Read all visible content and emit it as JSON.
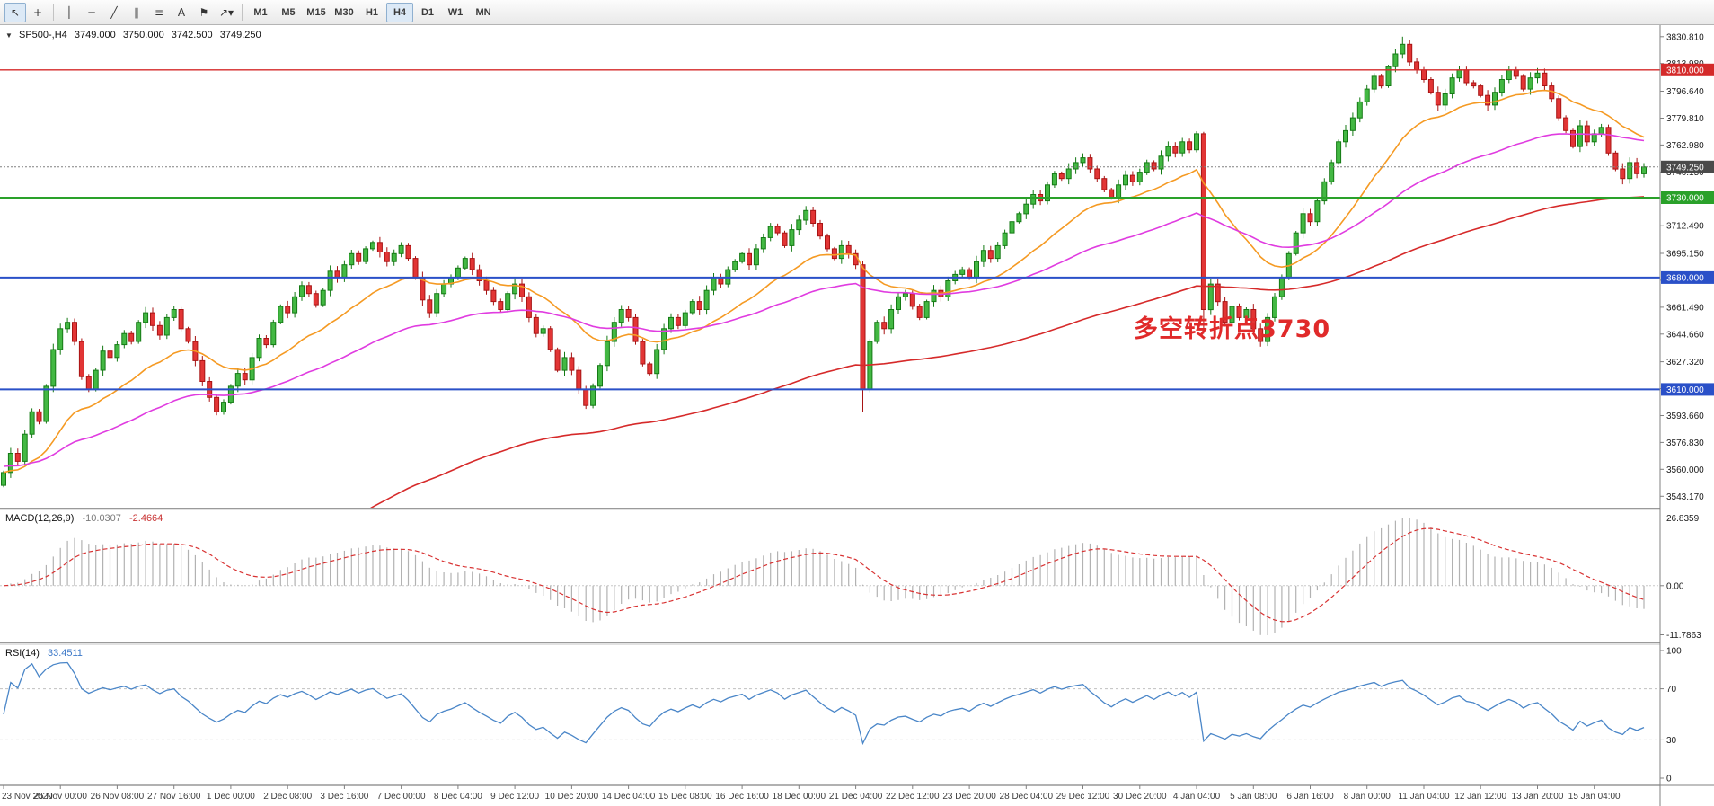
{
  "toolbar": {
    "tools": [
      {
        "name": "cursor-tool-button",
        "glyph": "↖",
        "active": true
      },
      {
        "name": "crosshair-tool-button",
        "glyph": "+",
        "active": false
      },
      {
        "type": "sep"
      },
      {
        "name": "vertical-line-tool-button",
        "glyph": "│",
        "active": false
      },
      {
        "name": "horizontal-line-tool-button",
        "glyph": "─",
        "active": false
      },
      {
        "name": "trendline-tool-button",
        "glyph": "╱",
        "active": false
      },
      {
        "name": "equidistant-channel-tool-button",
        "glyph": "∥",
        "active": false
      },
      {
        "name": "fibonacci-tool-button",
        "glyph": "≡",
        "active": false
      },
      {
        "name": "text-tool-button",
        "glyph": "A",
        "active": false
      },
      {
        "name": "label-tool-button",
        "glyph": "⚑",
        "active": false
      },
      {
        "name": "arrows-tool-button",
        "glyph": "↗▾",
        "active": false
      },
      {
        "type": "sep"
      }
    ],
    "timeframes": [
      "M1",
      "M5",
      "M15",
      "M30",
      "H1",
      "H4",
      "D1",
      "W1",
      "MN"
    ],
    "active_timeframe": "H4"
  },
  "symbol_header": {
    "symbol": "SP500-,H4",
    "open": "3749.000",
    "high": "3750.000",
    "low": "3742.500",
    "close": "3749.250"
  },
  "annotation": {
    "text": "多空转折点3730",
    "color": "#e02a2a"
  },
  "price_axis": {
    "ticks": [
      "3830.810",
      "3813.980",
      "3796.640",
      "3779.810",
      "3762.980",
      "3746.150",
      "3729.320",
      "3712.490",
      "3695.150",
      "3678.320",
      "3661.490",
      "3644.660",
      "3627.320",
      "3610.490",
      "3593.660",
      "3576.830",
      "3560.000",
      "3543.170"
    ]
  },
  "levels": [
    {
      "value": 3810.0,
      "label": "3810.000",
      "color": "#d42a2a",
      "badge": "#d42a2a",
      "width": 1.4
    },
    {
      "value": 3730.0,
      "label": "3730.000",
      "color": "#2aa12a",
      "badge": "#2aa12a",
      "width": 2
    },
    {
      "value": 3680.0,
      "label": "3680.000",
      "color": "#2a50c8",
      "badge": "#2a50c8",
      "width": 2
    },
    {
      "value": 3610.0,
      "label": "3610.000",
      "color": "#2a50c8",
      "badge": "#2a50c8",
      "width": 2
    }
  ],
  "current_price": {
    "value": 3749.25,
    "label": "3749.250",
    "badge": "#4a4a4a",
    "line_color": "#808080"
  },
  "macd": {
    "name": "MACD(12,26,9)",
    "main_value": "-10.0307",
    "signal_value": "-2.4664",
    "axis": [
      "26.8359",
      "0.00",
      "-11.7863"
    ],
    "fast": 12,
    "slow": 26,
    "signal": 9,
    "hist_color": "#b2b2b2",
    "signal_color": "#d83232"
  },
  "rsi": {
    "name": "RSI(14)",
    "value": "33.4511",
    "period": 14,
    "axis": [
      "100",
      "70",
      "30",
      "0"
    ],
    "levels": [
      70,
      30
    ],
    "line_color": "#4a86c8"
  },
  "chart_data": {
    "type": "candlestick",
    "symbol": "SP500-",
    "timeframe": "H4",
    "title": "SP500-,H4 3749.000 3750.000 3742.500 3749.250",
    "price_range": [
      3536,
      3838
    ],
    "up_color": "#43b843",
    "up_stroke": "#157a15",
    "down_color": "#e23535",
    "down_stroke": "#a81414",
    "bars_per_label": 8,
    "time_labels": [
      "23 Nov 2020",
      "25 Nov 00:00",
      "26 Nov 08:00",
      "27 Nov 16:00",
      "1 Dec 00:00",
      "2 Dec 08:00",
      "3 Dec 16:00",
      "7 Dec 00:00",
      "8 Dec 04:00",
      "9 Dec 12:00",
      "10 Dec 20:00",
      "14 Dec 04:00",
      "15 Dec 08:00",
      "16 Dec 16:00",
      "18 Dec 00:00",
      "21 Dec 04:00",
      "22 Dec 12:00",
      "23 Dec 20:00",
      "28 Dec 04:00",
      "29 Dec 12:00",
      "30 Dec 20:00",
      "4 Jan 04:00",
      "5 Jan 08:00",
      "6 Jan 16:00",
      "8 Jan 00:00",
      "11 Jan 04:00",
      "12 Jan 12:00",
      "13 Jan 20:00",
      "15 Jan 04:00"
    ],
    "closes": [
      3558,
      3570,
      3565,
      3582,
      3596,
      3590,
      3612,
      3635,
      3648,
      3652,
      3640,
      3618,
      3610,
      3622,
      3634,
      3630,
      3638,
      3645,
      3640,
      3652,
      3658,
      3650,
      3644,
      3655,
      3660,
      3648,
      3640,
      3628,
      3615,
      3605,
      3596,
      3602,
      3612,
      3620,
      3616,
      3630,
      3642,
      3638,
      3652,
      3662,
      3658,
      3668,
      3675,
      3670,
      3663,
      3672,
      3684,
      3680,
      3688,
      3695,
      3690,
      3698,
      3702,
      3696,
      3690,
      3695,
      3700,
      3692,
      3680,
      3666,
      3658,
      3670,
      3676,
      3680,
      3686,
      3692,
      3685,
      3678,
      3672,
      3665,
      3660,
      3670,
      3676,
      3668,
      3655,
      3645,
      3648,
      3635,
      3622,
      3630,
      3622,
      3610,
      3600,
      3612,
      3625,
      3640,
      3652,
      3660,
      3655,
      3640,
      3626,
      3620,
      3635,
      3648,
      3655,
      3650,
      3658,
      3665,
      3660,
      3672,
      3680,
      3676,
      3685,
      3690,
      3695,
      3688,
      3698,
      3705,
      3712,
      3708,
      3700,
      3710,
      3716,
      3722,
      3714,
      3706,
      3698,
      3692,
      3700,
      3695,
      3688,
      3610,
      3640,
      3652,
      3648,
      3660,
      3668,
      3670,
      3662,
      3655,
      3665,
      3672,
      3668,
      3678,
      3682,
      3685,
      3680,
      3690,
      3697,
      3692,
      3700,
      3708,
      3715,
      3720,
      3726,
      3732,
      3728,
      3738,
      3745,
      3742,
      3748,
      3752,
      3755,
      3748,
      3742,
      3735,
      3730,
      3738,
      3744,
      3740,
      3746,
      3752,
      3748,
      3756,
      3762,
      3758,
      3765,
      3760,
      3770,
      3660,
      3676,
      3665,
      3652,
      3662,
      3655,
      3660,
      3648,
      3640,
      3655,
      3668,
      3680,
      3695,
      3708,
      3720,
      3715,
      3728,
      3740,
      3752,
      3765,
      3772,
      3780,
      3790,
      3798,
      3806,
      3800,
      3812,
      3820,
      3826,
      3815,
      3810,
      3804,
      3796,
      3788,
      3795,
      3805,
      3810,
      3802,
      3800,
      3794,
      3788,
      3796,
      3804,
      3810,
      3806,
      3798,
      3805,
      3808,
      3800,
      3792,
      3780,
      3772,
      3762,
      3775,
      3765,
      3770,
      3774,
      3758,
      3748,
      3742,
      3752,
      3745,
      3749.25
    ],
    "wick_overrides": {
      "121": {
        "l": 3596
      },
      "169": {
        "l": 3645
      },
      "197": {
        "h": 3830.8
      }
    },
    "moving_averages": [
      {
        "name": "ma-fast",
        "period": 20,
        "seed": null,
        "color": "#f59a23"
      },
      {
        "name": "ma-medium",
        "period": 55,
        "seed": 3562,
        "color": "#e03ce0"
      },
      {
        "name": "ma-slow",
        "period": 130,
        "seed": 3400,
        "color": "#d62a2a"
      }
    ]
  }
}
